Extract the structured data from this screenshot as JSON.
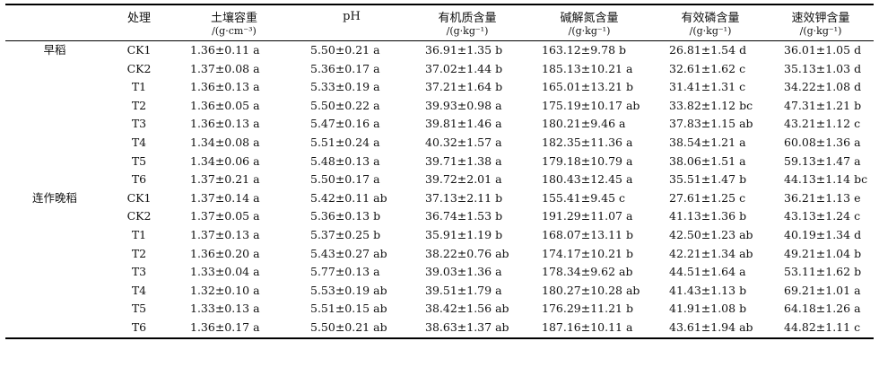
{
  "headers": {
    "season": "",
    "treatment": "处理",
    "bulk_density": "土壤容重",
    "bulk_density_unit": "/(g·cm⁻³)",
    "ph": "pH",
    "ph_unit": "",
    "organic_matter": "有机质含量",
    "organic_matter_unit": "/(g·kg⁻¹)",
    "alkali_n": "碱解氮含量",
    "alkali_n_unit": "/(g·kg⁻¹)",
    "avail_p": "有效磷含量",
    "avail_p_unit": "/(g·kg⁻¹)",
    "avail_k": "速效钾含量",
    "avail_k_unit": "/(g·kg⁻¹)"
  },
  "rows": [
    {
      "season": "早稻",
      "treatment": "CK1",
      "bd": "1.36±0.11 a",
      "ph": "5.50±0.21 a",
      "om": "36.91±1.35 b",
      "n": "163.12±9.78  b",
      "p": "26.81±1.54 d",
      "k": "36.01±1.05 d"
    },
    {
      "season": "",
      "treatment": "CK2",
      "bd": "1.37±0.08 a",
      "ph": "5.36±0.17 a",
      "om": "37.02±1.44 b",
      "n": "185.13±10.21 a",
      "p": "32.61±1.62 c",
      "k": "35.13±1.03 d"
    },
    {
      "season": "",
      "treatment": "T1",
      "bd": "1.36±0.13 a",
      "ph": "5.33±0.19 a",
      "om": "37.21±1.64 b",
      "n": "165.01±13.21 b",
      "p": "31.41±1.31 c",
      "k": "34.22±1.08 d"
    },
    {
      "season": "",
      "treatment": "T2",
      "bd": "1.36±0.05 a",
      "ph": "5.50±0.22 a",
      "om": "39.93±0.98 a",
      "n": "175.19±10.17 ab",
      "p": "33.82±1.12 bc",
      "k": "47.31±1.21 b"
    },
    {
      "season": "",
      "treatment": "T3",
      "bd": "1.36±0.13 a",
      "ph": "5.47±0.16 a",
      "om": "39.81±1.46 a",
      "n": "180.21±9.46  a",
      "p": "37.83±1.15 ab",
      "k": "43.21±1.12 c"
    },
    {
      "season": "",
      "treatment": "T4",
      "bd": "1.34±0.08 a",
      "ph": "5.51±0.24 a",
      "om": "40.32±1.57 a",
      "n": "182.35±11.36 a",
      "p": "38.54±1.21 a",
      "k": "60.08±1.36 a"
    },
    {
      "season": "",
      "treatment": "T5",
      "bd": "1.34±0.06 a",
      "ph": "5.48±0.13 a",
      "om": "39.71±1.38 a",
      "n": "179.18±10.79 a",
      "p": "38.06±1.51 a",
      "k": "59.13±1.47 a"
    },
    {
      "season": "",
      "treatment": "T6",
      "bd": "1.37±0.21 a",
      "ph": "5.50±0.17 a",
      "om": "39.72±2.01 a",
      "n": "180.43±12.45 a",
      "p": "35.51±1.47 b",
      "k": "44.13±1.14 bc"
    },
    {
      "season": "连作晚稻",
      "treatment": "CK1",
      "bd": "1.37±0.14 a",
      "ph": "5.42±0.11 ab",
      "om": "37.13±2.11 b",
      "n": "155.41±9.45  c",
      "p": "27.61±1.25 c",
      "k": "36.21±1.13 e"
    },
    {
      "season": "",
      "treatment": "CK2",
      "bd": "1.37±0.05 a",
      "ph": "5.36±0.13 b",
      "om": "36.74±1.53 b",
      "n": "191.29±11.07 a",
      "p": "41.13±1.36 b",
      "k": "43.13±1.24 c"
    },
    {
      "season": "",
      "treatment": "T1",
      "bd": "1.37±0.13 a",
      "ph": "5.37±0.25 b",
      "om": "35.91±1.19 b",
      "n": "168.07±13.11 b",
      "p": "42.50±1.23 ab",
      "k": "40.19±1.34 d"
    },
    {
      "season": "",
      "treatment": "T2",
      "bd": "1.36±0.20 a",
      "ph": "5.43±0.27 ab",
      "om": "38.22±0.76 ab",
      "n": "174.17±10.21 b",
      "p": "42.21±1.34 ab",
      "k": "49.21±1.04 b"
    },
    {
      "season": "",
      "treatment": "T3",
      "bd": "1.33±0.04 a",
      "ph": "5.77±0.13 a",
      "om": "39.03±1.36 a",
      "n": "178.34±9.62  ab",
      "p": "44.51±1.64 a",
      "k": "53.11±1.62 b"
    },
    {
      "season": "",
      "treatment": "T4",
      "bd": "1.32±0.10 a",
      "ph": "5.53±0.19 ab",
      "om": "39.51±1.79 a",
      "n": "180.27±10.28 ab",
      "p": "41.43±1.13 b",
      "k": "69.21±1.01 a"
    },
    {
      "season": "",
      "treatment": "T5",
      "bd": "1.33±0.13 a",
      "ph": "5.51±0.15 ab",
      "om": "38.42±1.56 ab",
      "n": "176.29±11.21 b",
      "p": "41.91±1.08 b",
      "k": "64.18±1.26 a"
    },
    {
      "season": "",
      "treatment": "T6",
      "bd": "1.36±0.17 a",
      "ph": "5.50±0.21 ab",
      "om": "38.63±1.37 ab",
      "n": "187.16±10.11 a",
      "p": "43.61±1.94 ab",
      "k": "44.82±1.11 c"
    }
  ]
}
